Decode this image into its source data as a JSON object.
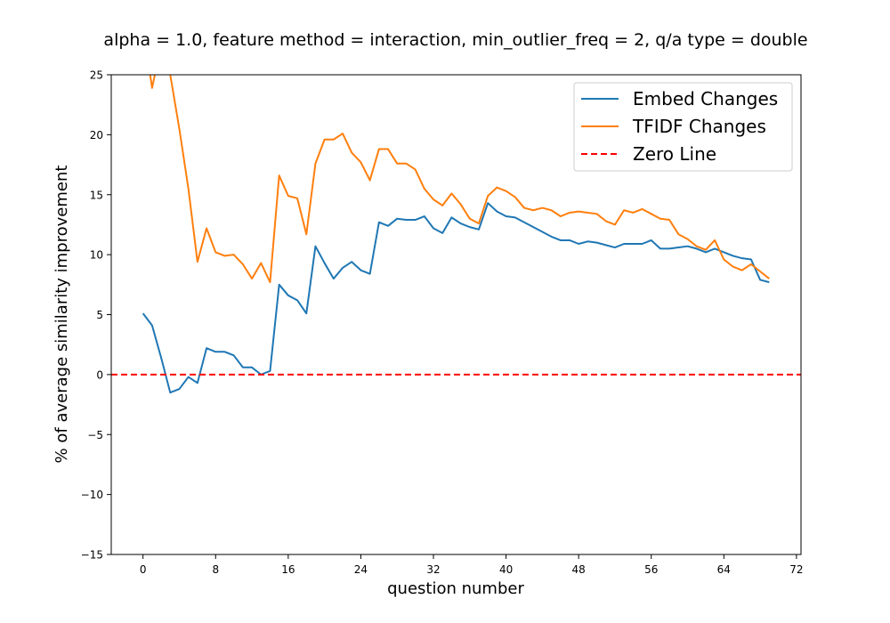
{
  "chart_data": {
    "type": "line",
    "title": "alpha = 1.0,  feature method = interaction, min_outlier_freq = 2,  q/a type = double",
    "xlabel": "question number",
    "ylabel": "% of average similarity improvement",
    "xlim": [
      -3.5,
      72.5
    ],
    "ylim": [
      -15,
      25
    ],
    "xticks": [
      0,
      8,
      16,
      24,
      32,
      40,
      48,
      56,
      64,
      72
    ],
    "yticks": [
      -15,
      -10,
      -5,
      0,
      5,
      10,
      15,
      20,
      25
    ],
    "grid": false,
    "legend_position": "top-right",
    "series": [
      {
        "name": "Embed Changes",
        "color": "#1f77b4",
        "style": "solid",
        "x": [
          0,
          1,
          2,
          3,
          4,
          5,
          6,
          7,
          8,
          9,
          10,
          11,
          12,
          13,
          14,
          15,
          16,
          17,
          18,
          19,
          20,
          21,
          22,
          23,
          24,
          25,
          26,
          27,
          28,
          29,
          30,
          31,
          32,
          33,
          34,
          35,
          36,
          37,
          38,
          39,
          40,
          41,
          42,
          43,
          44,
          45,
          46,
          47,
          48,
          49,
          50,
          51,
          52,
          53,
          54,
          55,
          56,
          57,
          58,
          59,
          60,
          61,
          62,
          63,
          64,
          65,
          66,
          67,
          68,
          69
        ],
        "y": [
          5.1,
          4.1,
          1.4,
          -1.5,
          -1.2,
          -0.2,
          -0.7,
          2.2,
          1.9,
          1.9,
          1.6,
          0.6,
          0.6,
          0.0,
          0.3,
          7.5,
          6.6,
          6.2,
          5.1,
          10.7,
          9.3,
          8.0,
          8.9,
          9.4,
          8.7,
          8.4,
          12.7,
          12.4,
          13.0,
          12.9,
          12.9,
          13.2,
          12.2,
          11.8,
          13.1,
          12.6,
          12.3,
          12.1,
          14.3,
          13.6,
          13.2,
          13.1,
          12.7,
          12.3,
          11.9,
          11.5,
          11.2,
          11.2,
          10.9,
          11.1,
          11.0,
          10.8,
          10.6,
          10.9,
          10.9,
          10.9,
          11.2,
          10.5,
          10.5,
          10.6,
          10.7,
          10.5,
          10.2,
          10.5,
          10.2,
          9.9,
          9.7,
          9.6,
          7.9,
          7.7
        ]
      },
      {
        "name": "TFIDF Changes",
        "color": "#ff7f0e",
        "style": "solid",
        "x": [
          0,
          1,
          2,
          3,
          4,
          5,
          6,
          7,
          8,
          9,
          10,
          11,
          12,
          13,
          14,
          15,
          16,
          17,
          18,
          19,
          20,
          21,
          22,
          23,
          24,
          25,
          26,
          27,
          28,
          29,
          30,
          31,
          32,
          33,
          34,
          35,
          36,
          37,
          38,
          39,
          40,
          41,
          42,
          43,
          44,
          45,
          46,
          47,
          48,
          49,
          50,
          51,
          52,
          53,
          54,
          55,
          56,
          57,
          58,
          59,
          60,
          61,
          62,
          63,
          64,
          65,
          66,
          67,
          68,
          69
        ],
        "y": [
          29.0,
          23.9,
          27.5,
          25.0,
          20.5,
          15.5,
          9.4,
          12.2,
          10.2,
          9.9,
          10.0,
          9.2,
          8.0,
          9.3,
          7.7,
          16.6,
          14.9,
          14.7,
          11.7,
          17.6,
          19.6,
          19.6,
          20.1,
          18.5,
          17.7,
          16.2,
          18.8,
          18.8,
          17.6,
          17.6,
          17.1,
          15.5,
          14.6,
          14.1,
          15.1,
          14.2,
          13.0,
          12.6,
          14.9,
          15.6,
          15.3,
          14.8,
          13.9,
          13.7,
          13.9,
          13.7,
          13.2,
          13.5,
          13.6,
          13.5,
          13.4,
          12.8,
          12.5,
          13.7,
          13.5,
          13.8,
          13.4,
          13.0,
          12.9,
          11.7,
          11.3,
          10.7,
          10.4,
          11.2,
          9.6,
          9.0,
          8.7,
          9.2,
          8.6,
          8.0
        ]
      },
      {
        "name": "Zero Line",
        "color": "#ff0000",
        "style": "dashed",
        "constant": 0
      }
    ]
  }
}
